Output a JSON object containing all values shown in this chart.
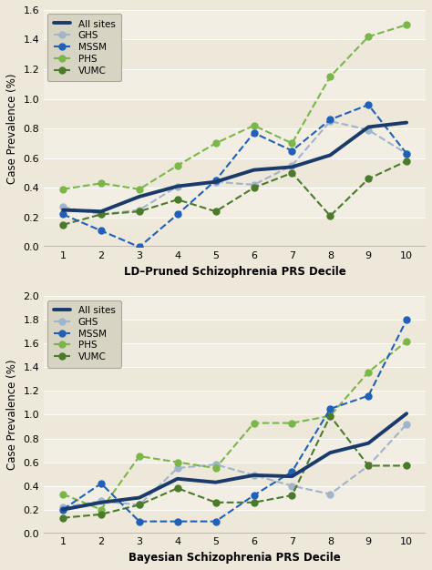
{
  "top": {
    "ylabel": "Case Prevalence (%)",
    "xlabel": "LD–Pruned Schizophrenia PRS Decile",
    "ylim": [
      0.0,
      1.6
    ],
    "yticks": [
      0.0,
      0.2,
      0.4,
      0.6,
      0.8,
      1.0,
      1.2,
      1.4,
      1.6
    ],
    "series": {
      "All sites": {
        "x": [
          1,
          2,
          3,
          4,
          5,
          6,
          7,
          8,
          9,
          10
        ],
        "y": [
          0.25,
          0.24,
          0.34,
          0.41,
          0.44,
          0.52,
          0.54,
          0.62,
          0.81,
          0.84
        ],
        "color": "#1a3a6b",
        "linewidth": 2.8,
        "linestyle": "solid",
        "marker": null,
        "zorder": 5
      },
      "GHS": {
        "x": [
          1,
          2,
          3,
          4,
          5,
          6,
          7,
          8,
          9,
          10
        ],
        "y": [
          0.27,
          0.22,
          0.25,
          0.41,
          0.44,
          0.42,
          0.55,
          0.85,
          0.79,
          0.63
        ],
        "color": "#a0b4cc",
        "linewidth": 1.5,
        "linestyle": "dashed",
        "marker": "o",
        "zorder": 3
      },
      "MSSM": {
        "x": [
          1,
          2,
          3,
          4,
          5,
          6,
          7,
          8,
          9,
          10
        ],
        "y": [
          0.22,
          0.11,
          0.0,
          0.22,
          0.45,
          0.77,
          0.65,
          0.86,
          0.96,
          0.63
        ],
        "color": "#2060b8",
        "linewidth": 1.5,
        "linestyle": "dashed",
        "marker": "o",
        "zorder": 4
      },
      "PHS": {
        "x": [
          1,
          2,
          3,
          4,
          5,
          6,
          7,
          8,
          9,
          10
        ],
        "y": [
          0.39,
          0.43,
          0.39,
          0.55,
          0.7,
          0.82,
          0.7,
          1.15,
          1.42,
          1.5
        ],
        "color": "#7ab648",
        "linewidth": 1.5,
        "linestyle": "dashed",
        "marker": "o",
        "zorder": 3
      },
      "VUMC": {
        "x": [
          1,
          2,
          3,
          4,
          5,
          6,
          7,
          8,
          9,
          10
        ],
        "y": [
          0.15,
          0.22,
          0.24,
          0.32,
          0.24,
          0.4,
          0.5,
          0.21,
          0.46,
          0.58
        ],
        "color": "#4a7a2a",
        "linewidth": 1.5,
        "linestyle": "dashed",
        "marker": "o",
        "zorder": 3
      }
    }
  },
  "bottom": {
    "ylabel": "Case Prevalence (%)",
    "xlabel": "Bayesian Schizophrenia PRS Decile",
    "ylim": [
      0.0,
      2.0
    ],
    "yticks": [
      0.0,
      0.2,
      0.4,
      0.6,
      0.8,
      1.0,
      1.2,
      1.4,
      1.6,
      1.8,
      2.0
    ],
    "series": {
      "All sites": {
        "x": [
          1,
          2,
          3,
          4,
          5,
          6,
          7,
          8,
          9,
          10
        ],
        "y": [
          0.2,
          0.26,
          0.3,
          0.46,
          0.43,
          0.49,
          0.48,
          0.68,
          0.76,
          1.01
        ],
        "color": "#1a3a6b",
        "linewidth": 2.8,
        "linestyle": "solid",
        "marker": null,
        "zorder": 5
      },
      "GHS": {
        "x": [
          1,
          2,
          3,
          4,
          5,
          6,
          7,
          8,
          9,
          10
        ],
        "y": [
          0.22,
          0.27,
          0.24,
          0.55,
          0.58,
          0.49,
          0.4,
          0.33,
          0.57,
          0.92
        ],
        "color": "#a0b4cc",
        "linewidth": 1.5,
        "linestyle": "dashed",
        "marker": "o",
        "zorder": 3
      },
      "MSSM": {
        "x": [
          1,
          2,
          3,
          4,
          5,
          6,
          7,
          8,
          9,
          10
        ],
        "y": [
          0.2,
          0.42,
          0.1,
          0.1,
          0.1,
          0.32,
          0.52,
          1.05,
          1.16,
          1.8
        ],
        "color": "#2060b8",
        "linewidth": 1.5,
        "linestyle": "dashed",
        "marker": "o",
        "zorder": 4
      },
      "PHS": {
        "x": [
          1,
          2,
          3,
          4,
          5,
          6,
          7,
          8,
          9,
          10
        ],
        "y": [
          0.33,
          0.2,
          0.65,
          0.6,
          0.55,
          0.93,
          0.93,
          0.99,
          1.36,
          1.62
        ],
        "color": "#7ab648",
        "linewidth": 1.5,
        "linestyle": "dashed",
        "marker": "o",
        "zorder": 3
      },
      "VUMC": {
        "x": [
          1,
          2,
          3,
          4,
          5,
          6,
          7,
          8,
          9,
          10
        ],
        "y": [
          0.13,
          0.16,
          0.24,
          0.38,
          0.26,
          0.26,
          0.32,
          0.99,
          0.57,
          0.57
        ],
        "color": "#4a7a2a",
        "linewidth": 1.5,
        "linestyle": "dashed",
        "marker": "o",
        "zorder": 3
      }
    }
  },
  "bg_color": "#ede8da",
  "legend_bg": "#d8d4c4",
  "grid_color": "#f8f4ec",
  "zero_line_color": "#b8b4aa",
  "marker_size": 5,
  "legend_order": [
    "All sites",
    "GHS",
    "MSSM",
    "PHS",
    "VUMC"
  ]
}
